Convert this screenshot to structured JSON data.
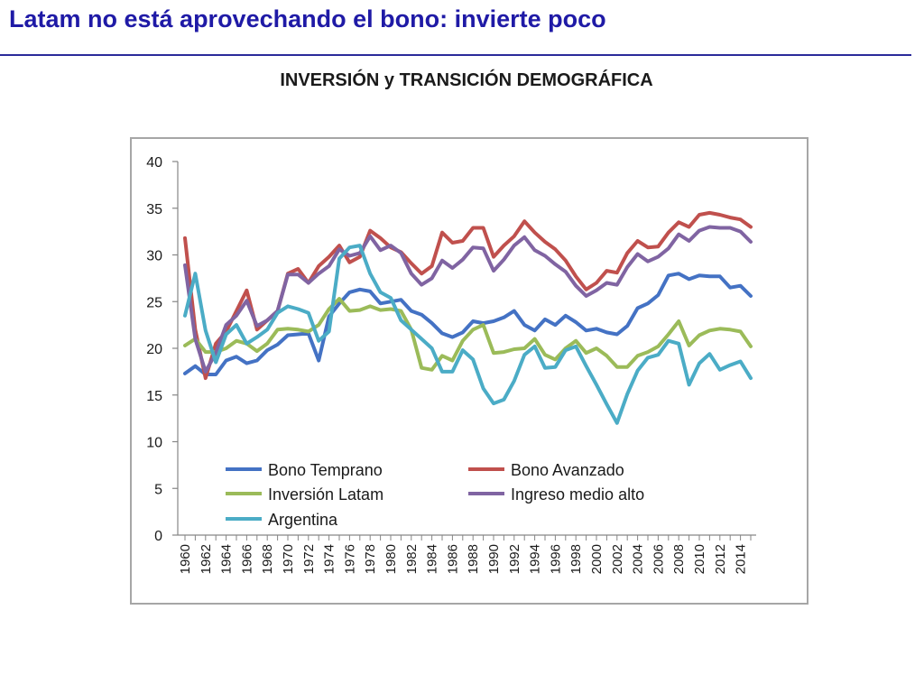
{
  "slide": {
    "title": "Latam no está aprovechando el bono: invierte poco"
  },
  "chart_data": {
    "type": "line",
    "title": "INVERSIÓN y TRANSICIÓN DEMOGRÁFICA",
    "xlabel": "",
    "ylabel": "",
    "ylim": [
      0,
      40
    ],
    "yticks": [
      0,
      5,
      10,
      15,
      20,
      25,
      30,
      35,
      40
    ],
    "grid": false,
    "legend_position": "inside-bottom",
    "x": [
      1960,
      1961,
      1962,
      1963,
      1964,
      1965,
      1966,
      1967,
      1968,
      1969,
      1970,
      1971,
      1972,
      1973,
      1974,
      1975,
      1976,
      1977,
      1978,
      1979,
      1980,
      1981,
      1982,
      1983,
      1984,
      1985,
      1986,
      1987,
      1988,
      1989,
      1990,
      1991,
      1992,
      1993,
      1994,
      1995,
      1996,
      1997,
      1998,
      1999,
      2000,
      2001,
      2002,
      2003,
      2004,
      2005,
      2006,
      2007,
      2008,
      2009,
      2010,
      2011,
      2012,
      2013,
      2014,
      2015
    ],
    "xtick_labels": [
      "1960",
      "1962",
      "1964",
      "1966",
      "1968",
      "1970",
      "1972",
      "1974",
      "1976",
      "1978",
      "1980",
      "1982",
      "1984",
      "1986",
      "1988",
      "1990",
      "1992",
      "1994",
      "1996",
      "1998",
      "2000",
      "2002",
      "2004",
      "2006",
      "2008",
      "2010",
      "2012",
      "2014"
    ],
    "series": [
      {
        "name": "Bono Temprano",
        "color": "#4472c4",
        "values": [
          17.3,
          18.1,
          17.2,
          17.2,
          18.7,
          19.1,
          18.4,
          18.7,
          19.8,
          20.4,
          21.4,
          21.5,
          21.6,
          18.7,
          23.4,
          24.8,
          26.0,
          26.3,
          26.1,
          24.8,
          25.0,
          25.2,
          24.0,
          23.6,
          22.7,
          21.6,
          21.2,
          21.7,
          22.9,
          22.7,
          22.9,
          23.3,
          24.0,
          22.5,
          21.9,
          23.1,
          22.5,
          23.5,
          22.8,
          21.9,
          22.1,
          21.7,
          21.5,
          22.4,
          24.3,
          24.8,
          25.7,
          27.8,
          28.0,
          27.4,
          27.8,
          27.7,
          27.7,
          26.5,
          26.7,
          25.6
        ]
      },
      {
        "name": "Bono Avanzado",
        "color": "#c0504d",
        "values": [
          31.8,
          22.0,
          16.8,
          20.5,
          21.8,
          24.0,
          26.2,
          22.0,
          23.0,
          24.0,
          28.0,
          28.5,
          27.0,
          28.8,
          29.8,
          31.0,
          29.2,
          29.8,
          32.6,
          31.8,
          30.8,
          30.3,
          29.1,
          28.0,
          28.8,
          32.4,
          31.3,
          31.5,
          32.9,
          32.9,
          29.8,
          31.0,
          32.0,
          33.6,
          32.4,
          31.4,
          30.6,
          29.4,
          27.7,
          26.3,
          27.0,
          28.3,
          28.1,
          30.2,
          31.5,
          30.8,
          30.9,
          32.4,
          33.5,
          33.0,
          34.3,
          34.5,
          34.3,
          34.0,
          33.8,
          33.0
        ]
      },
      {
        "name": "Inversión Latam",
        "color": "#9bbb59",
        "values": [
          20.3,
          21.0,
          19.6,
          19.6,
          20.0,
          20.8,
          20.5,
          19.7,
          20.5,
          22.0,
          22.1,
          22.0,
          21.8,
          22.5,
          24.2,
          25.3,
          24.0,
          24.1,
          24.5,
          24.1,
          24.2,
          24.0,
          22.0,
          17.9,
          17.7,
          19.2,
          18.7,
          20.8,
          22.0,
          22.5,
          19.5,
          19.6,
          19.9,
          20.0,
          21.0,
          19.3,
          18.8,
          20.0,
          20.8,
          19.5,
          20.0,
          19.2,
          18.0,
          18.0,
          19.2,
          19.6,
          20.2,
          21.5,
          22.9,
          20.3,
          21.4,
          21.9,
          22.1,
          22.0,
          21.8,
          20.2
        ]
      },
      {
        "name": "Ingreso medio alto",
        "color": "#8064a2",
        "values": [
          28.9,
          21.0,
          17.5,
          19.5,
          22.5,
          23.5,
          25.1,
          22.4,
          23.0,
          24.0,
          27.9,
          27.9,
          27.0,
          28.0,
          28.8,
          30.6,
          29.9,
          30.2,
          32.0,
          30.5,
          31.0,
          30.2,
          28.0,
          26.8,
          27.5,
          29.4,
          28.6,
          29.5,
          30.8,
          30.7,
          28.3,
          29.5,
          31.0,
          31.9,
          30.5,
          29.9,
          29.0,
          28.2,
          26.7,
          25.6,
          26.2,
          27.0,
          26.8,
          28.7,
          30.1,
          29.3,
          29.8,
          30.7,
          32.2,
          31.5,
          32.6,
          33.0,
          32.9,
          32.9,
          32.5,
          31.4
        ]
      },
      {
        "name": "Argentina",
        "color": "#4bacc6",
        "values": [
          23.5,
          28.0,
          21.9,
          18.5,
          21.5,
          22.5,
          20.5,
          21.2,
          22.0,
          23.8,
          24.5,
          24.2,
          23.8,
          20.8,
          21.8,
          29.6,
          30.8,
          31.0,
          28.0,
          26.0,
          25.4,
          23.0,
          22.0,
          21.0,
          20.0,
          17.5,
          17.5,
          19.8,
          18.8,
          15.7,
          14.1,
          14.5,
          16.5,
          19.3,
          20.2,
          17.9,
          18.0,
          19.8,
          20.2,
          18.1,
          16.1,
          14.0,
          12.0,
          15.1,
          17.6,
          19.0,
          19.3,
          20.8,
          20.5,
          16.1,
          18.4,
          19.4,
          17.7,
          18.2,
          18.6,
          16.8
        ]
      }
    ]
  }
}
